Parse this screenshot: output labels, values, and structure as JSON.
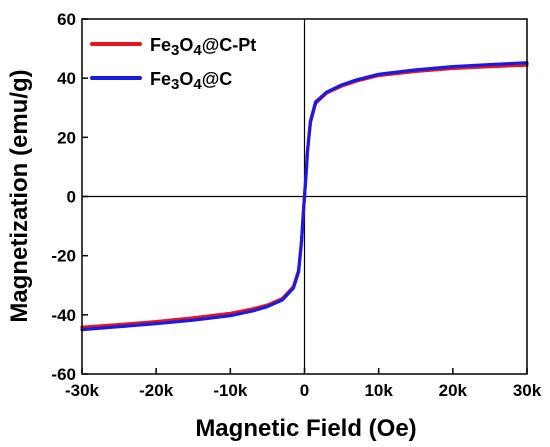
{
  "chart_data": {
    "type": "line",
    "xlabel": "Magnetic Field (Oe)",
    "ylabel": "Magnetization (emu/g)",
    "xlim": [
      -30000,
      30000
    ],
    "ylim": [
      -60,
      60
    ],
    "xticks": [
      -30000,
      -20000,
      -10000,
      0,
      10000,
      20000,
      30000
    ],
    "xtick_labels": [
      "-30k",
      "-20k",
      "-10k",
      "0",
      "10k",
      "20k",
      "30k"
    ],
    "yticks": [
      -60,
      -40,
      -20,
      0,
      20,
      40,
      60
    ],
    "ytick_labels": [
      "-60",
      "-40",
      "-20",
      "0",
      "20",
      "40",
      "60"
    ],
    "zero_lines": true,
    "legend_position": "top-left",
    "series": [
      {
        "name": "Fe3O4@C-Pt",
        "color": "#e8141c",
        "x": [
          -30000,
          -25000,
          -20000,
          -15000,
          -10000,
          -7000,
          -5000,
          -3000,
          -1500,
          -800,
          -400,
          -200,
          0,
          200,
          400,
          800,
          1500,
          3000,
          5000,
          7000,
          10000,
          15000,
          20000,
          25000,
          30000
        ],
        "y": [
          -44.2,
          -43.3,
          -42.3,
          -41.0,
          -39.5,
          -38.0,
          -36.7,
          -34.5,
          -30.5,
          -25.0,
          -15.0,
          -7.0,
          0,
          7.0,
          15.0,
          25.0,
          31.5,
          35.0,
          37.3,
          39.0,
          40.9,
          42.3,
          43.3,
          43.9,
          44.4
        ]
      },
      {
        "name": "Fe3O4@C",
        "color": "#1a1ae6",
        "x": [
          -30000,
          -25000,
          -20000,
          -15000,
          -10000,
          -7000,
          -5000,
          -3000,
          -1500,
          -800,
          -400,
          -200,
          0,
          200,
          400,
          800,
          1500,
          3000,
          5000,
          7000,
          10000,
          15000,
          20000,
          25000,
          30000
        ],
        "y": [
          -45.0,
          -44.0,
          -43.0,
          -41.8,
          -40.3,
          -38.7,
          -37.2,
          -35.0,
          -31.0,
          -25.5,
          -15.3,
          -7.2,
          0,
          7.2,
          15.3,
          25.5,
          32.0,
          35.3,
          37.7,
          39.4,
          41.3,
          42.8,
          43.9,
          44.6,
          45.2
        ]
      }
    ]
  },
  "legend": {
    "items": [
      {
        "formula": {
          "a": "Fe",
          "n1": "3",
          "b": "O",
          "n2": "4",
          "c": "@C-Pt"
        },
        "color": "#e8141c"
      },
      {
        "formula": {
          "a": "Fe",
          "n1": "3",
          "b": "O",
          "n2": "4",
          "c": "@C"
        },
        "color": "#1a1ae6"
      }
    ]
  }
}
